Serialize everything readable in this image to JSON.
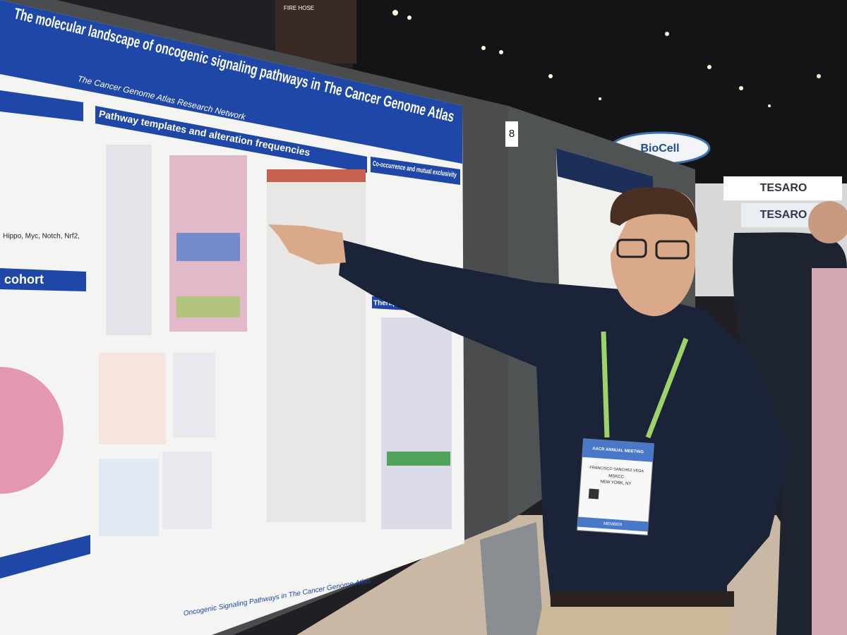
{
  "poster": {
    "title": "The molecular landscape of oncogenic signaling pathways in The Cancer Genome Atlas",
    "organization": "The Cancer Genome Atlas Research Network",
    "sections": [
      "Pathway templates and alteration frequencies",
      "Co-occurrence and mutual exclusivity",
      "cohort",
      "Therapeutic"
    ],
    "pathways": "Hippo, Myc, Notch, Nrf2,",
    "footer": "Oncogenic Signaling Pathways in The Cancer Genome Atlas"
  },
  "board_number": "8",
  "signs": [
    "TESARO",
    "TESARO",
    "BioCell",
    "FIRE HOSE"
  ],
  "badge": {
    "event": "AACR ANNUAL MEETING",
    "name": "FRANCISCO SANCHEZ VEGA",
    "affiliation": "MSKCC",
    "location": "NEW YORK, NY",
    "role": "MEMBER"
  }
}
